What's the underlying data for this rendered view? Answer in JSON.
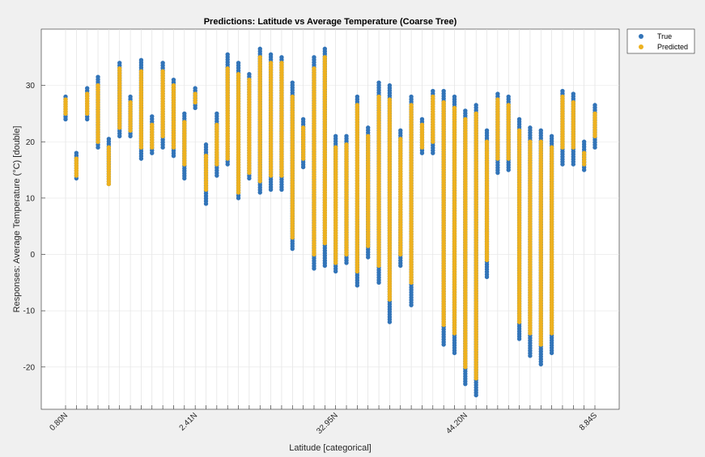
{
  "chart_data": {
    "type": "scatter",
    "title": "Predictions: Latitude vs Average Temperature (Coarse Tree)",
    "xlabel": "Latitude [categorical]",
    "ylabel": "Responses: Average Temperature (°C) [double]",
    "ylim": [
      -27.5,
      40
    ],
    "yticks": [
      -20,
      -10,
      0,
      10,
      20,
      30
    ],
    "category_count": 50,
    "xtick_labels": [
      {
        "index": 0,
        "label": "0.80N"
      },
      {
        "index": 12,
        "label": "2.41N"
      },
      {
        "index": 25,
        "label": "32.95N"
      },
      {
        "index": 37,
        "label": "44.20N"
      },
      {
        "index": 49,
        "label": "8.84S"
      }
    ],
    "grid": true,
    "legend_position": "top-right",
    "series": [
      {
        "name": "True",
        "color": "#3274b8",
        "ranges": [
          [
            24,
            28
          ],
          [
            13.5,
            18
          ],
          [
            24,
            29.5
          ],
          [
            19,
            31.5
          ],
          [
            12.5,
            20.5
          ],
          [
            21,
            34
          ],
          [
            21,
            28
          ],
          [
            17,
            34.5
          ],
          [
            18,
            24.5
          ],
          [
            19,
            34
          ],
          [
            17.5,
            31
          ],
          [
            13.5,
            25
          ],
          [
            26,
            29.5
          ],
          [
            9,
            19.5
          ],
          [
            14,
            25
          ],
          [
            16,
            35.5
          ],
          [
            10,
            34
          ],
          [
            13.5,
            32
          ],
          [
            11,
            36.5
          ],
          [
            11.5,
            35.5
          ],
          [
            11.5,
            35
          ],
          [
            1,
            30.5
          ],
          [
            15.5,
            24
          ],
          [
            -2.5,
            35
          ],
          [
            -2,
            36.5
          ],
          [
            -3,
            21
          ],
          [
            -1.5,
            21
          ],
          [
            -5.5,
            28
          ],
          [
            -0.5,
            22.5
          ],
          [
            -5,
            30.5
          ],
          [
            -12,
            30
          ],
          [
            -2,
            22
          ],
          [
            -9,
            28
          ],
          [
            18,
            24
          ],
          [
            18,
            29
          ],
          [
            -16,
            29
          ],
          [
            -17.5,
            28
          ],
          [
            -23,
            25.5
          ],
          [
            -25,
            26.5
          ],
          [
            -4,
            22
          ],
          [
            14.5,
            28.5
          ],
          [
            15,
            28
          ],
          [
            -15,
            24
          ],
          [
            -18,
            22.5
          ],
          [
            -19.5,
            22
          ],
          [
            -17.5,
            21
          ],
          [
            16,
            29
          ],
          [
            16,
            28.5
          ],
          [
            15,
            20
          ],
          [
            19,
            26.5
          ]
        ]
      },
      {
        "name": "Predicted",
        "color": "#edb120",
        "ranges": [
          [
            25,
            27.5
          ],
          [
            14,
            17
          ],
          [
            25,
            28.5
          ],
          [
            20,
            30
          ],
          [
            12.5,
            19
          ],
          [
            22.5,
            33
          ],
          [
            22,
            27
          ],
          [
            19,
            32.5
          ],
          [
            19,
            23
          ],
          [
            21,
            32.5
          ],
          [
            19,
            30
          ],
          [
            16,
            23.5
          ],
          [
            27,
            28.5
          ],
          [
            11.5,
            17.5
          ],
          [
            16,
            23
          ],
          [
            17,
            33
          ],
          [
            11,
            32
          ],
          [
            14.5,
            31
          ],
          [
            13,
            35
          ],
          [
            14,
            34
          ],
          [
            14,
            34
          ],
          [
            3,
            28
          ],
          [
            17,
            22.5
          ],
          [
            0,
            33
          ],
          [
            2,
            35
          ],
          [
            -1.5,
            19
          ],
          [
            0,
            19.5
          ],
          [
            -3,
            26.5
          ],
          [
            1.5,
            21
          ],
          [
            -2,
            28
          ],
          [
            -8,
            27.5
          ],
          [
            0,
            20.5
          ],
          [
            -5,
            26.5
          ],
          [
            19,
            23
          ],
          [
            20,
            28
          ],
          [
            -12.5,
            27
          ],
          [
            -14,
            26
          ],
          [
            -20,
            24
          ],
          [
            -22,
            25
          ],
          [
            -1,
            20
          ],
          [
            17,
            27.5
          ],
          [
            17,
            26.5
          ],
          [
            -12,
            22
          ],
          [
            -14,
            20
          ],
          [
            -16,
            20
          ],
          [
            -14,
            19
          ],
          [
            19,
            28
          ],
          [
            19,
            27
          ],
          [
            16,
            18
          ],
          [
            21,
            25
          ]
        ]
      }
    ]
  },
  "legend": {
    "entries": [
      "True",
      "Predicted"
    ]
  }
}
